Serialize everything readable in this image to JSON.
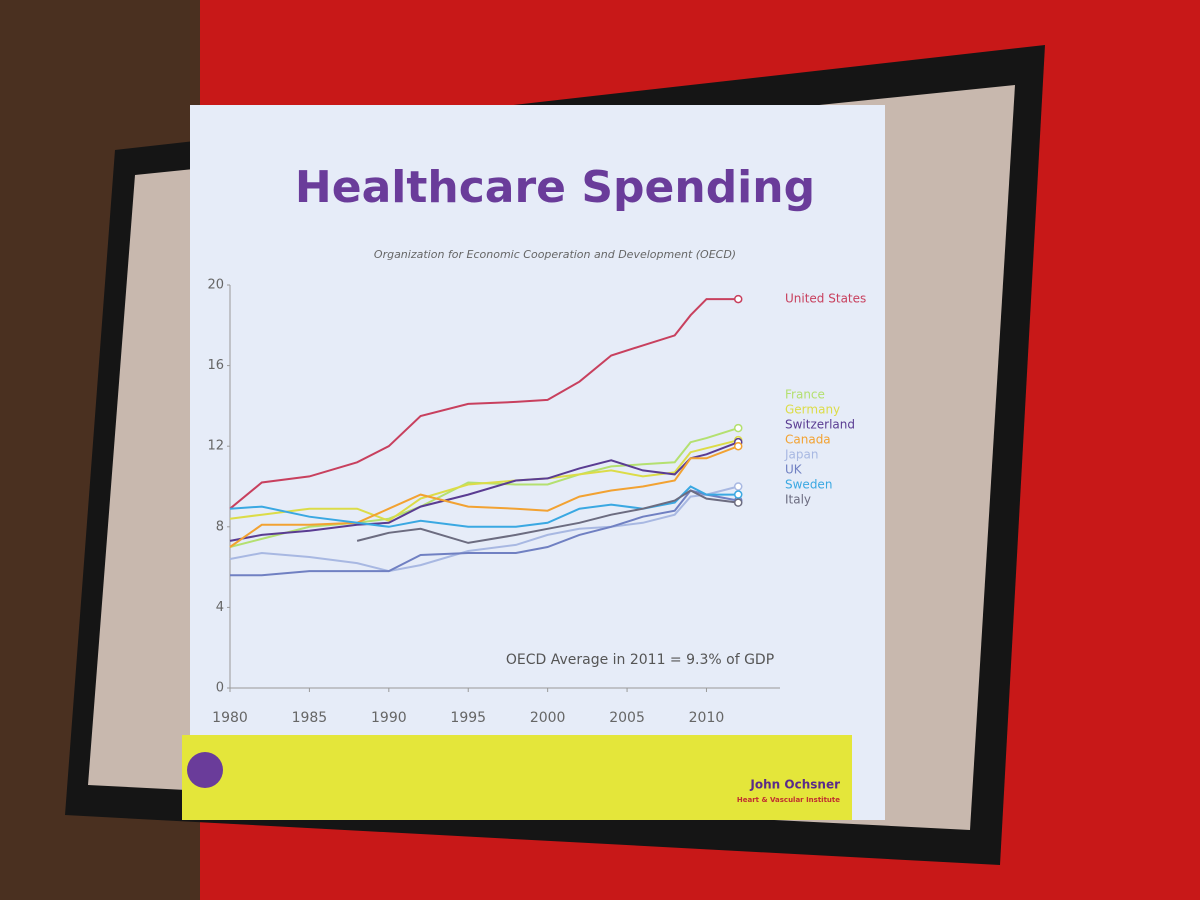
{
  "chart_data": {
    "type": "line",
    "title": "Healthcare Spending",
    "subtitle": "Organization for Economic Cooperation and Development (OECD)",
    "annotation": "OECD Average in 2011 = 9.3% of GDP",
    "footer": {
      "name": "John Ochsner",
      "institute": "Heart & Vascular Institute"
    },
    "x": [
      1980,
      1982,
      1985,
      1988,
      1990,
      1992,
      1995,
      1998,
      2000,
      2002,
      2004,
      2006,
      2008,
      2009,
      2010,
      2012
    ],
    "xlim": [
      1980,
      2014
    ],
    "xticks": [
      1980,
      1985,
      1990,
      1995,
      2000,
      2005,
      2010
    ],
    "ylim": [
      0,
      20
    ],
    "yticks": [
      0,
      4,
      8,
      12,
      16,
      20
    ],
    "series": [
      {
        "name": "United States",
        "color": "#c8405e",
        "values": [
          8.9,
          10.2,
          10.5,
          11.2,
          12.0,
          13.5,
          14.1,
          14.2,
          14.3,
          15.2,
          16.5,
          17.0,
          17.5,
          18.5,
          19.3,
          19.3
        ]
      },
      {
        "name": "France",
        "color": "#b4e070",
        "values": [
          7.0,
          7.4,
          8.0,
          8.2,
          8.4,
          9.0,
          10.2,
          10.1,
          10.1,
          10.6,
          11.0,
          11.1,
          11.2,
          12.2,
          12.4,
          12.9
        ]
      },
      {
        "name": "Germany",
        "color": "#dcdc48",
        "values": [
          8.4,
          8.6,
          8.9,
          8.9,
          8.3,
          9.4,
          10.1,
          10.3,
          10.4,
          10.6,
          10.8,
          10.5,
          10.7,
          11.7,
          11.9,
          12.3
        ]
      },
      {
        "name": "Switzerland",
        "color": "#5a3c92",
        "values": [
          7.3,
          7.6,
          7.8,
          8.1,
          8.2,
          9.0,
          9.6,
          10.3,
          10.4,
          10.9,
          11.3,
          10.8,
          10.6,
          11.4,
          11.6,
          12.2
        ]
      },
      {
        "name": "Canada",
        "color": "#f2a232",
        "values": [
          7.0,
          8.1,
          8.1,
          8.2,
          8.9,
          9.6,
          9.0,
          8.9,
          8.8,
          9.5,
          9.8,
          10.0,
          10.3,
          11.4,
          11.4,
          12.0
        ]
      },
      {
        "name": "Japan",
        "color": "#a8b8e2",
        "values": [
          6.4,
          6.7,
          6.5,
          6.2,
          5.8,
          6.1,
          6.8,
          7.1,
          7.6,
          7.9,
          8.0,
          8.2,
          8.6,
          9.5,
          9.6,
          10.0
        ]
      },
      {
        "name": "UK",
        "color": "#7080c2",
        "values": [
          5.6,
          5.6,
          5.8,
          5.8,
          5.8,
          6.6,
          6.7,
          6.7,
          7.0,
          7.6,
          8.0,
          8.5,
          8.8,
          9.8,
          9.6,
          9.3
        ]
      },
      {
        "name": "Sweden",
        "color": "#3aa8e2",
        "values": [
          8.9,
          9.0,
          8.5,
          8.2,
          8.0,
          8.3,
          8.0,
          8.0,
          8.2,
          8.9,
          9.1,
          8.9,
          9.2,
          10.0,
          9.6,
          9.6
        ]
      },
      {
        "name": "Italy",
        "color": "#6c6c80",
        "values": [
          null,
          null,
          null,
          7.3,
          7.7,
          7.9,
          7.2,
          7.6,
          7.9,
          8.2,
          8.6,
          8.9,
          9.3,
          9.8,
          9.4,
          9.2
        ]
      }
    ]
  }
}
